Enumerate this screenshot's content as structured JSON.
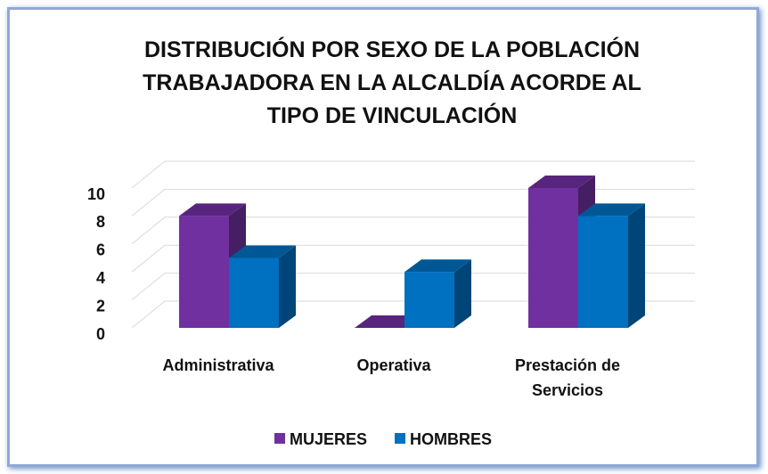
{
  "chart_data": {
    "type": "bar3d",
    "title": "DISTRIBUCIÓN POR SEXO DE LA POBLACIÓN TRABAJADORA EN LA ALCALDÍA ACORDE AL TIPO DE VINCULACIÓN",
    "categories": [
      "Administrativa",
      "Operativa",
      "Prestación de Servicios"
    ],
    "series": [
      {
        "name": "MUJERES",
        "color": "#7030a0",
        "values": [
          8,
          0,
          10
        ]
      },
      {
        "name": "HOMBRES",
        "color": "#0070c0",
        "values": [
          5,
          4,
          8
        ]
      }
    ],
    "ylim": [
      0,
      10
    ],
    "yticks": [
      0,
      2,
      4,
      6,
      8,
      10
    ],
    "grid": true,
    "legend": "bottom"
  }
}
